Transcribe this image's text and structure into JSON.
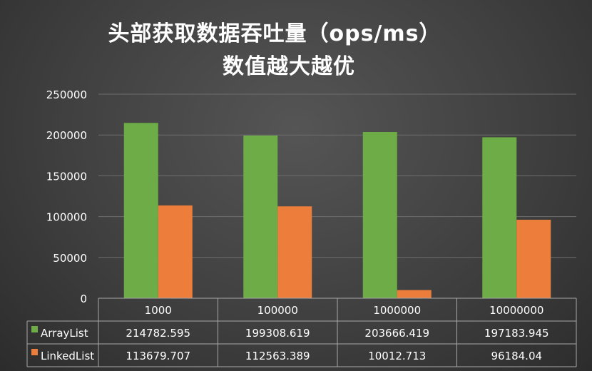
{
  "title_line1": "头部获取数据吞吐量（ops/ms）",
  "title_line2": "数值越大越优",
  "colors": {
    "ArrayList": "#6dac46",
    "LinkedList": "#ec7d3b",
    "grid": "#6e6e6e",
    "text": "#ffffff"
  },
  "chart_data": {
    "type": "bar",
    "categories": [
      "1000",
      "100000",
      "1000000",
      "10000000"
    ],
    "series": [
      {
        "name": "ArrayList",
        "values": [
          214782.595,
          199308.619,
          203666.419,
          197183.945
        ],
        "labels": [
          "214782.595",
          "199308.619",
          "203666.419",
          "197183.945"
        ]
      },
      {
        "name": "LinkedList",
        "values": [
          113679.707,
          112563.389,
          10012.713,
          96184.04
        ],
        "labels": [
          "113679.707",
          "112563.389",
          "10012.713",
          "96184.04"
        ]
      }
    ],
    "ylim": [
      0,
      250000
    ],
    "yticks": [
      "0",
      "50000",
      "100000",
      "150000",
      "200000",
      "250000"
    ],
    "grid": true,
    "legend": "data-table"
  }
}
